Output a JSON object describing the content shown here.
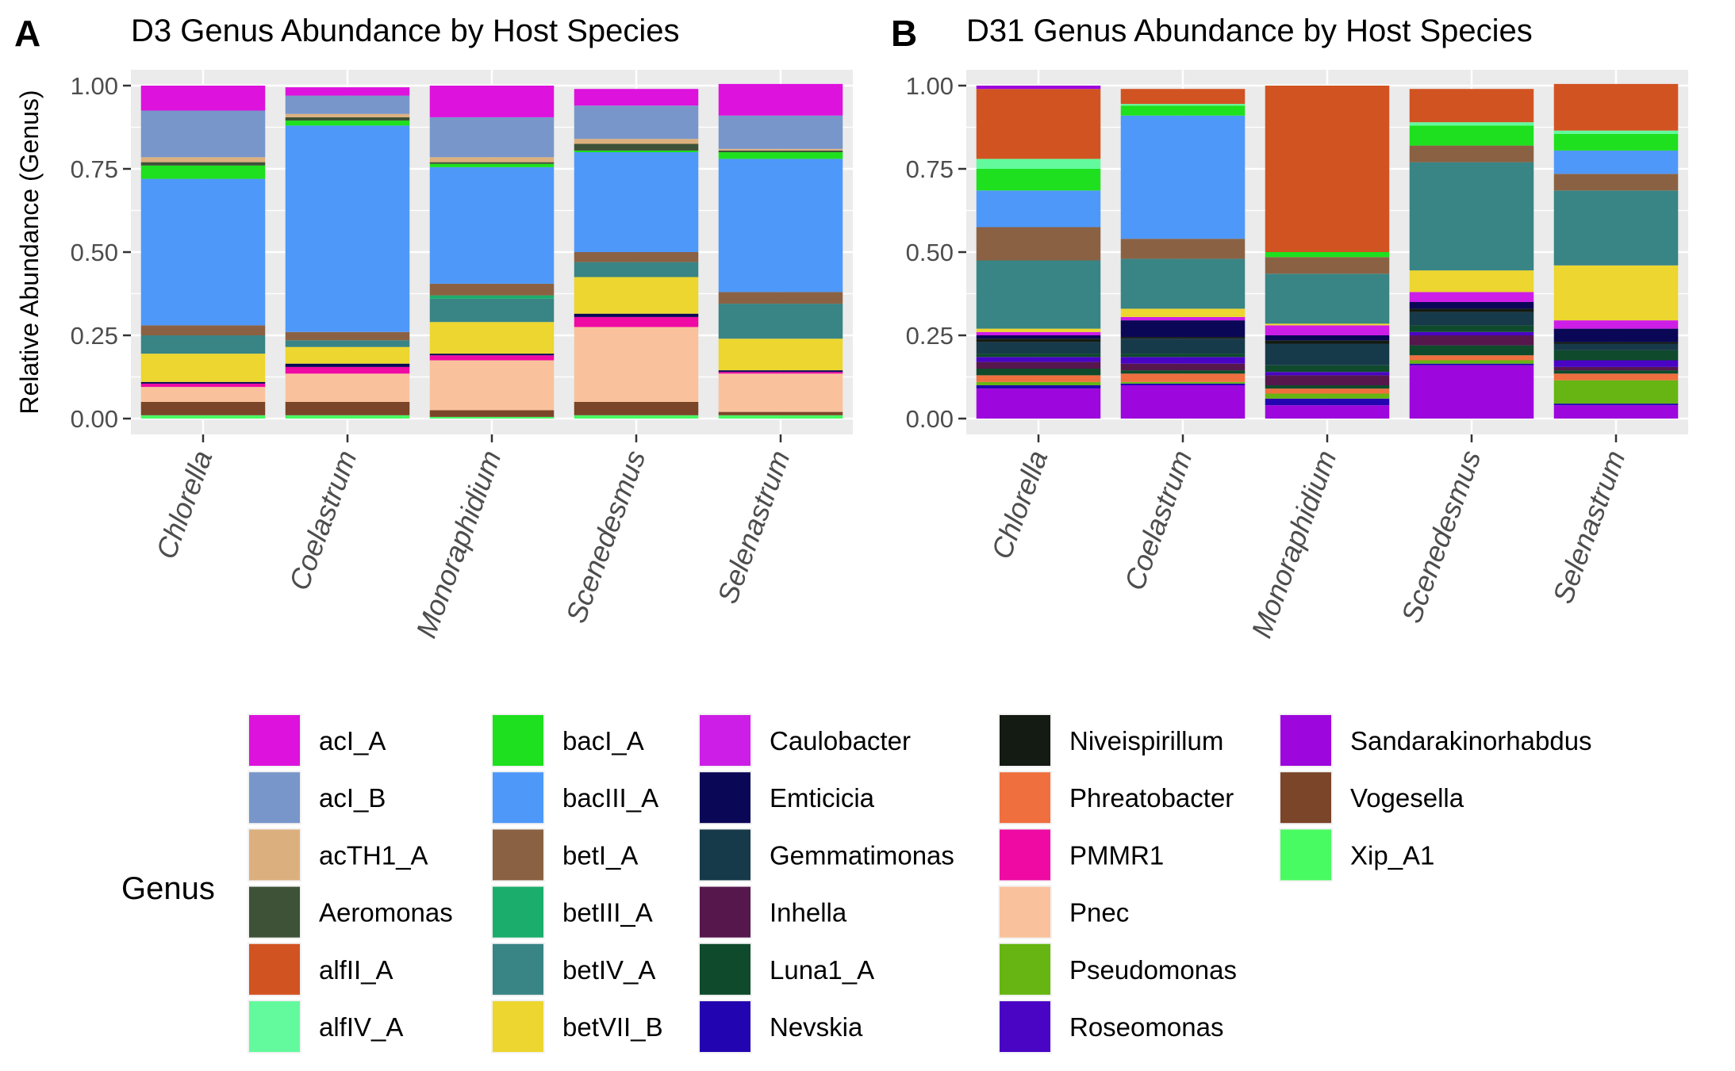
{
  "panels": [
    {
      "letter": "A",
      "title": "D3 Genus Abundance by Host Species"
    },
    {
      "letter": "B",
      "title": "D31 Genus Abundance by Host Species"
    }
  ],
  "legend": {
    "title": "Genus",
    "items": [
      {
        "name": "acI_A",
        "color": "#dd12dd"
      },
      {
        "name": "acI_B",
        "color": "#7896ca"
      },
      {
        "name": "acTH1_A",
        "color": "#dcb07e"
      },
      {
        "name": "Aeromonas",
        "color": "#3e5237"
      },
      {
        "name": "alfII_A",
        "color": "#d25322"
      },
      {
        "name": "alfIV_A",
        "color": "#62fa9d"
      },
      {
        "name": "bacI_A",
        "color": "#1ee01e"
      },
      {
        "name": "bacIII_A",
        "color": "#4e98f9"
      },
      {
        "name": "betI_A",
        "color": "#8a6243"
      },
      {
        "name": "betIII_A",
        "color": "#1aad6c"
      },
      {
        "name": "betIV_A",
        "color": "#398485"
      },
      {
        "name": "betVII_B",
        "color": "#ecd62f"
      },
      {
        "name": "Caulobacter",
        "color": "#cc1ee6"
      },
      {
        "name": "Emticicia",
        "color": "#0a0757"
      },
      {
        "name": "Gemmatimonas",
        "color": "#173a4a"
      },
      {
        "name": "Inhella",
        "color": "#56174d"
      },
      {
        "name": "Luna1_A",
        "color": "#0f4a2c"
      },
      {
        "name": "Nevskia",
        "color": "#2205b0"
      },
      {
        "name": "Niveispirillum",
        "color": "#141b12"
      },
      {
        "name": "Phreatobacter",
        "color": "#ef6f3e"
      },
      {
        "name": "PMMR1",
        "color": "#ef0aa3"
      },
      {
        "name": "Pnec",
        "color": "#f9c29c"
      },
      {
        "name": "Pseudomonas",
        "color": "#66b512"
      },
      {
        "name": "Roseomonas",
        "color": "#4a04c4"
      },
      {
        "name": "Sandarakinorhabdus",
        "color": "#9d06dc"
      },
      {
        "name": "Vogesella",
        "color": "#7a4528"
      },
      {
        "name": "Xip_A1",
        "color": "#48fb62"
      }
    ]
  },
  "chart_data": [
    {
      "type": "bar",
      "stacked": true,
      "title": "D3 Genus Abundance by Host Species",
      "ylabel": "Relative Abundance (Genus)",
      "xlabel": "",
      "ylim": [
        0,
        1
      ],
      "yticks": [
        "0.00",
        "0.25",
        "0.50",
        "0.75",
        "1.00"
      ],
      "categories": [
        "Chlorella",
        "Coelastrum",
        "Monoraphidium",
        "Scenedesmus",
        "Selenastrum"
      ],
      "series": [
        {
          "name": "Xip_A1",
          "values": [
            0.01,
            0.01,
            0.005,
            0.01,
            0.01
          ]
        },
        {
          "name": "Vogesella",
          "values": [
            0.04,
            0.04,
            0.02,
            0.04,
            0.01
          ]
        },
        {
          "name": "Pnec",
          "values": [
            0.045,
            0.085,
            0.15,
            0.225,
            0.115
          ]
        },
        {
          "name": "PMMR1",
          "values": [
            0.01,
            0.02,
            0.015,
            0.03,
            0.005
          ]
        },
        {
          "name": "Emticicia",
          "values": [
            0.005,
            0.01,
            0.005,
            0.01,
            0.005
          ]
        },
        {
          "name": "betVII_B",
          "values": [
            0.085,
            0.05,
            0.095,
            0.11,
            0.095
          ]
        },
        {
          "name": "betIV_A",
          "values": [
            0.055,
            0.02,
            0.07,
            0.045,
            0.105
          ]
        },
        {
          "name": "betIII_A",
          "values": [
            0.0,
            0.0,
            0.01,
            0.0,
            0.0
          ]
        },
        {
          "name": "betI_A",
          "values": [
            0.03,
            0.025,
            0.035,
            0.03,
            0.035
          ]
        },
        {
          "name": "bacIII_A",
          "values": [
            0.44,
            0.62,
            0.35,
            0.3,
            0.4
          ]
        },
        {
          "name": "bacI_A",
          "values": [
            0.04,
            0.015,
            0.01,
            0.005,
            0.02
          ]
        },
        {
          "name": "Aeromonas",
          "values": [
            0.01,
            0.01,
            0.005,
            0.02,
            0.005
          ]
        },
        {
          "name": "acTH1_A",
          "values": [
            0.015,
            0.01,
            0.015,
            0.015,
            0.005
          ]
        },
        {
          "name": "acI_B",
          "values": [
            0.14,
            0.055,
            0.12,
            0.1,
            0.1
          ]
        },
        {
          "name": "acI_A",
          "values": [
            0.075,
            0.025,
            0.095,
            0.05,
            0.095
          ]
        }
      ]
    },
    {
      "type": "bar",
      "stacked": true,
      "title": "D31 Genus Abundance by Host Species",
      "ylabel": "",
      "xlabel": "",
      "ylim": [
        0,
        1
      ],
      "yticks": [
        "0.00",
        "0.25",
        "0.50",
        "0.75",
        "1.00"
      ],
      "categories": [
        "Chlorella",
        "Coelastrum",
        "Monoraphidium",
        "Scenedesmus",
        "Selenastrum"
      ],
      "series": [
        {
          "name": "Sandarakinorhabdus",
          "values": [
            0.09,
            0.1,
            0.04,
            0.16,
            0.04
          ]
        },
        {
          "name": "Nevskia",
          "values": [
            0.01,
            0.005,
            0.02,
            0.005,
            0.005
          ]
        },
        {
          "name": "Pseudomonas",
          "values": [
            0.01,
            0.005,
            0.015,
            0.01,
            0.07
          ]
        },
        {
          "name": "Phreatobacter",
          "values": [
            0.02,
            0.025,
            0.015,
            0.015,
            0.02
          ]
        },
        {
          "name": "Luna1_A",
          "values": [
            0.02,
            0.01,
            0.01,
            0.03,
            0.01
          ]
        },
        {
          "name": "Inhella",
          "values": [
            0.02,
            0.02,
            0.03,
            0.03,
            0.01
          ]
        },
        {
          "name": "Roseomonas",
          "values": [
            0.015,
            0.02,
            0.01,
            0.01,
            0.02
          ]
        },
        {
          "name": "Luna1_A",
          "values": [
            0.01,
            0.01,
            0.02,
            0.02,
            0.03
          ]
        },
        {
          "name": "Gemmatimonas",
          "values": [
            0.035,
            0.045,
            0.065,
            0.04,
            0.02
          ]
        },
        {
          "name": "Niveispirillum",
          "values": [
            0.01,
            0.005,
            0.01,
            0.01,
            0.005
          ]
        },
        {
          "name": "Emticicia",
          "values": [
            0.01,
            0.05,
            0.015,
            0.02,
            0.04
          ]
        },
        {
          "name": "Caulobacter",
          "values": [
            0.01,
            0.01,
            0.03,
            0.03,
            0.025
          ]
        },
        {
          "name": "betVII_B",
          "values": [
            0.01,
            0.025,
            0.005,
            0.065,
            0.165
          ]
        },
        {
          "name": "betIV_A",
          "values": [
            0.205,
            0.15,
            0.15,
            0.325,
            0.225
          ]
        },
        {
          "name": "betI_A",
          "values": [
            0.1,
            0.06,
            0.05,
            0.05,
            0.05
          ]
        },
        {
          "name": "bacIII_A",
          "values": [
            0.11,
            0.37,
            0.0,
            0.0,
            0.07
          ]
        },
        {
          "name": "bacI_A",
          "values": [
            0.065,
            0.03,
            0.015,
            0.06,
            0.05
          ]
        },
        {
          "name": "alfIV_A",
          "values": [
            0.03,
            0.005,
            0.0,
            0.01,
            0.01
          ]
        },
        {
          "name": "alfII_A",
          "values": [
            0.21,
            0.045,
            0.5,
            0.1,
            0.14
          ]
        },
        {
          "name": "Sandarakinorhabdus",
          "values": [
            0.01,
            0.0,
            0.0,
            0.0,
            0.0
          ]
        }
      ]
    }
  ]
}
